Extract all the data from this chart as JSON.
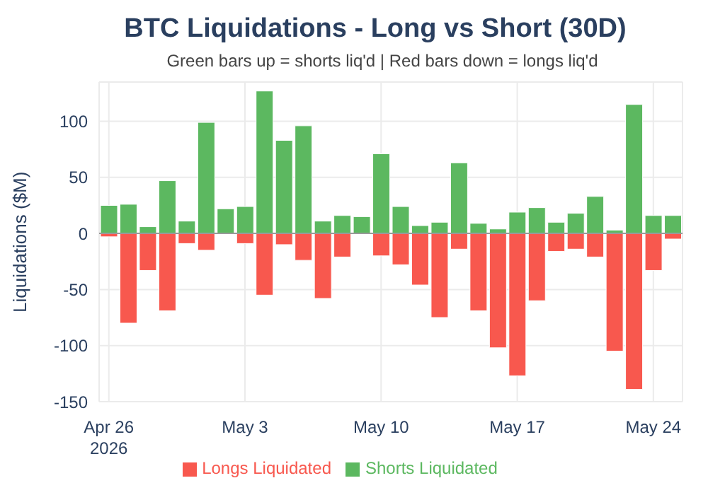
{
  "chart_data": {
    "type": "bar",
    "title": "BTC Liquidations - Long vs Short (30D)",
    "subtitle": "Green bars up = shorts liq'd | Red bars down = longs liq'd",
    "ylabel": "Liquidations ($M)",
    "x": [
      "2026-04-26",
      "2026-04-27",
      "2026-04-28",
      "2026-04-29",
      "2026-04-30",
      "2026-05-01",
      "2026-05-02",
      "2026-05-03",
      "2026-05-04",
      "2026-05-05",
      "2026-05-06",
      "2026-05-07",
      "2026-05-08",
      "2026-05-09",
      "2026-05-10",
      "2026-05-11",
      "2026-05-12",
      "2026-05-13",
      "2026-05-14",
      "2026-05-15",
      "2026-05-16",
      "2026-05-17",
      "2026-05-18",
      "2026-05-19",
      "2026-05-20",
      "2026-05-21",
      "2026-05-22",
      "2026-05-23",
      "2026-05-24",
      "2026-05-25"
    ],
    "series": [
      {
        "name": "Longs Liquidated",
        "color": "#f8584e",
        "values": [
          -3,
          -80,
          -33,
          -69,
          -9,
          -15,
          null,
          -9,
          -55,
          -10,
          -24,
          -58,
          -21,
          null,
          -20,
          -28,
          -46,
          -75,
          -14,
          -69,
          -102,
          -127,
          -60,
          -16,
          -14,
          -21,
          -105,
          -139,
          -33,
          -5
        ]
      },
      {
        "name": "Shorts Liquidated",
        "color": "#5cb860",
        "values": [
          25,
          26,
          6,
          47,
          11,
          99,
          22,
          24,
          127,
          83,
          96,
          11,
          16,
          15,
          71,
          24,
          7,
          10,
          63,
          9,
          4,
          19,
          23,
          10,
          18,
          33,
          3,
          115,
          16,
          16
        ]
      }
    ],
    "stacked": true,
    "xlim": [
      "2026-04-25T12:00",
      "2026-05-25T12:00"
    ],
    "xticks": [
      {
        "value": "2026-04-26",
        "label": "Apr 26\n2026"
      },
      {
        "value": "2026-05-03",
        "label": "May 3"
      },
      {
        "value": "2026-05-10",
        "label": "May 10"
      },
      {
        "value": "2026-05-17",
        "label": "May 17"
      },
      {
        "value": "2026-05-24",
        "label": "May 24"
      }
    ],
    "ylim": [
      -150,
      135
    ],
    "yticks": [
      -150,
      -100,
      -50,
      0,
      50,
      100
    ],
    "grid": true,
    "legend": "bottom"
  }
}
